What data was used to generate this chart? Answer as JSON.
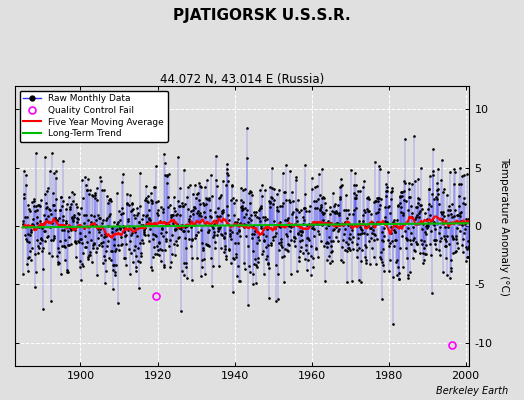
{
  "title": "PJATIGORSK U.S.S.R.",
  "subtitle": "44.072 N, 43.014 E (Russia)",
  "ylabel": "Temperature Anomaly (°C)",
  "watermark": "Berkeley Earth",
  "year_start": 1885,
  "year_end": 2001,
  "xlim_start": 1883,
  "xlim_end": 2001,
  "ylim": [
    -12,
    12
  ],
  "yticks": [
    -10,
    -5,
    0,
    5,
    10
  ],
  "xticks": [
    1900,
    1920,
    1940,
    1960,
    1980,
    2000
  ],
  "bg_color": "#e0e0e0",
  "plot_bg_color": "#e0e0e0",
  "line_color": "#3333ff",
  "line_alpha": 0.7,
  "dot_color": "#000000",
  "moving_avg_color": "#ff0000",
  "trend_color": "#00bb00",
  "qc_fail_color": "#ff00ff",
  "qc_times": [
    1919.5,
    1996.5
  ],
  "qc_values": [
    -6.0,
    -10.2
  ],
  "seed": 17,
  "std_dev": 2.2,
  "moving_avg_window": 60
}
